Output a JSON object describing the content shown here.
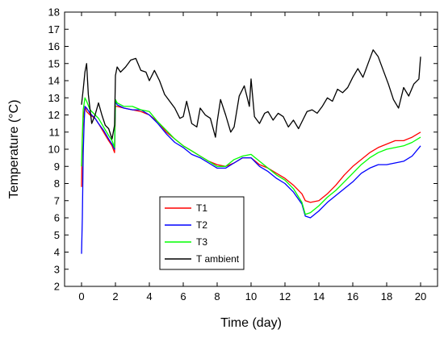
{
  "chart_data": {
    "type": "line",
    "xlabel": "Time (day)",
    "ylabel": "Temperature (°C)",
    "xlim": [
      -1,
      21
    ],
    "ylim": [
      2,
      18
    ],
    "xticks": [
      0,
      2,
      4,
      6,
      8,
      10,
      12,
      14,
      16,
      18,
      20
    ],
    "yticks": [
      2,
      3,
      4,
      5,
      6,
      7,
      8,
      9,
      10,
      11,
      12,
      13,
      14,
      15,
      16,
      17,
      18
    ],
    "grid": false,
    "legend_position": "bottom-center",
    "series": [
      {
        "name": "T1",
        "color": "#ff0000",
        "x": [
          0,
          0.05,
          0.1,
          0.2,
          0.3,
          0.5,
          0.8,
          1.0,
          1.3,
          1.6,
          1.8,
          1.95,
          2.0,
          2.1,
          2.5,
          3.0,
          3.5,
          4.0,
          4.5,
          5.0,
          5.5,
          6.0,
          6.5,
          7.0,
          7.5,
          8.0,
          8.5,
          9.0,
          9.5,
          10.0,
          10.5,
          11.0,
          11.5,
          12.0,
          12.5,
          13.0,
          13.2,
          13.5,
          14.0,
          14.5,
          15.0,
          15.5,
          16.0,
          16.5,
          17.0,
          17.5,
          18.0,
          18.5,
          19.0,
          19.5,
          20.0
        ],
        "values": [
          7.8,
          10.5,
          11.8,
          12.5,
          12.2,
          12.0,
          11.8,
          11.5,
          11.0,
          10.5,
          10.2,
          9.8,
          12.5,
          12.5,
          12.4,
          12.3,
          12.2,
          12.0,
          11.6,
          11.0,
          10.6,
          10.2,
          9.9,
          9.6,
          9.3,
          9.1,
          9.0,
          9.2,
          9.5,
          9.5,
          9.1,
          8.9,
          8.6,
          8.3,
          7.9,
          7.4,
          7.0,
          6.9,
          7.0,
          7.4,
          7.9,
          8.5,
          9.0,
          9.4,
          9.8,
          10.1,
          10.3,
          10.5,
          10.5,
          10.7,
          11.0
        ]
      },
      {
        "name": "T2",
        "color": "#0000ff",
        "x": [
          0,
          0.05,
          0.1,
          0.15,
          0.2,
          0.3,
          0.5,
          0.8,
          1.0,
          1.3,
          1.6,
          1.8,
          1.95,
          2.0,
          2.1,
          2.5,
          3.0,
          3.5,
          4.0,
          4.5,
          5.0,
          5.5,
          6.0,
          6.5,
          7.0,
          7.5,
          8.0,
          8.5,
          9.0,
          9.5,
          10.0,
          10.5,
          11.0,
          11.5,
          12.0,
          12.5,
          13.0,
          13.2,
          13.5,
          14.0,
          14.5,
          15.0,
          15.5,
          16.0,
          16.5,
          17.0,
          17.5,
          18.0,
          18.5,
          19.0,
          19.5,
          20.0
        ],
        "values": [
          3.9,
          6.0,
          9.8,
          11.5,
          12.5,
          12.4,
          12.1,
          11.8,
          11.5,
          11.1,
          10.6,
          10.3,
          10.0,
          12.8,
          12.6,
          12.4,
          12.3,
          12.3,
          12.0,
          11.5,
          10.9,
          10.4,
          10.1,
          9.7,
          9.5,
          9.2,
          8.9,
          8.9,
          9.2,
          9.5,
          9.5,
          9.0,
          8.7,
          8.3,
          8.0,
          7.5,
          6.8,
          6.1,
          6.0,
          6.4,
          6.9,
          7.3,
          7.7,
          8.1,
          8.6,
          8.9,
          9.1,
          9.1,
          9.2,
          9.3,
          9.6,
          10.2
        ]
      },
      {
        "name": "T3",
        "color": "#00ff00",
        "x": [
          0,
          0.05,
          0.1,
          0.2,
          0.3,
          0.5,
          0.8,
          1.0,
          1.3,
          1.6,
          1.8,
          1.95,
          2.0,
          2.1,
          2.5,
          3.0,
          3.5,
          4.0,
          4.5,
          5.0,
          5.5,
          6.0,
          6.5,
          7.0,
          7.5,
          8.0,
          8.5,
          9.0,
          9.5,
          10.0,
          10.5,
          11.0,
          11.5,
          12.0,
          12.5,
          13.0,
          13.2,
          13.5,
          14.0,
          14.5,
          15.0,
          15.5,
          16.0,
          16.5,
          17.0,
          17.5,
          18.0,
          18.5,
          19.0,
          19.5,
          20.0
        ],
        "values": [
          9.0,
          10.8,
          12.3,
          13.0,
          12.8,
          12.3,
          12.0,
          11.8,
          11.3,
          10.8,
          10.5,
          10.1,
          12.9,
          12.7,
          12.5,
          12.5,
          12.3,
          12.2,
          11.6,
          11.1,
          10.6,
          10.2,
          9.9,
          9.6,
          9.3,
          9.0,
          9.0,
          9.4,
          9.6,
          9.7,
          9.3,
          8.9,
          8.5,
          8.2,
          7.7,
          6.9,
          6.2,
          6.3,
          6.7,
          7.2,
          7.6,
          8.1,
          8.6,
          9.1,
          9.5,
          9.8,
          10.0,
          10.1,
          10.2,
          10.4,
          10.7
        ]
      },
      {
        "name": "T ambient",
        "color": "#000000",
        "x": [
          0,
          0.1,
          0.2,
          0.3,
          0.4,
          0.6,
          0.8,
          1.0,
          1.2,
          1.4,
          1.6,
          1.8,
          1.95,
          2.0,
          2.1,
          2.3,
          2.6,
          2.9,
          3.2,
          3.5,
          3.8,
          4.0,
          4.3,
          4.6,
          4.9,
          5.2,
          5.5,
          5.8,
          6.0,
          6.2,
          6.5,
          6.8,
          7.0,
          7.3,
          7.6,
          7.9,
          8.0,
          8.2,
          8.5,
          8.8,
          9.0,
          9.3,
          9.6,
          9.9,
          10.0,
          10.2,
          10.5,
          10.8,
          11.0,
          11.3,
          11.6,
          11.9,
          12.2,
          12.5,
          12.8,
          13.0,
          13.3,
          13.6,
          13.9,
          14.2,
          14.5,
          14.8,
          15.1,
          15.4,
          15.7,
          16.0,
          16.3,
          16.6,
          16.9,
          17.2,
          17.5,
          17.8,
          18.1,
          18.4,
          18.7,
          19.0,
          19.3,
          19.6,
          19.9,
          20.0
        ],
        "values": [
          12.6,
          13.5,
          14.5,
          15.0,
          13.2,
          11.5,
          12.0,
          12.7,
          12.0,
          11.4,
          11.2,
          10.6,
          11.4,
          14.3,
          14.8,
          14.5,
          14.8,
          15.2,
          15.3,
          14.6,
          14.5,
          14.0,
          14.6,
          14.0,
          13.2,
          12.8,
          12.4,
          11.8,
          11.9,
          12.8,
          11.5,
          11.3,
          12.4,
          12.0,
          11.8,
          10.7,
          11.6,
          12.9,
          12.0,
          11.0,
          11.3,
          13.1,
          13.7,
          12.5,
          14.1,
          11.9,
          11.5,
          12.1,
          12.2,
          11.7,
          12.1,
          11.9,
          11.3,
          11.7,
          11.2,
          11.6,
          12.2,
          12.3,
          12.1,
          12.5,
          13.0,
          12.8,
          13.5,
          13.3,
          13.6,
          14.2,
          14.7,
          14.2,
          15.0,
          15.8,
          15.4,
          14.6,
          13.8,
          12.9,
          12.4,
          13.6,
          13.1,
          13.8,
          14.1,
          15.4
        ]
      }
    ]
  }
}
